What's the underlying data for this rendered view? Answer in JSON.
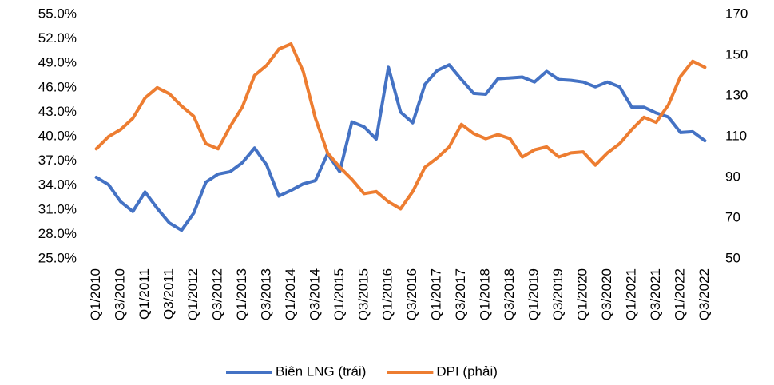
{
  "chart_data": {
    "type": "line",
    "categories": [
      "Q1/2010",
      null,
      "Q3/2010",
      null,
      "Q1/2011",
      null,
      "Q3/2011",
      null,
      "Q1/2012",
      null,
      "Q3/2012",
      null,
      "Q1/2013",
      null,
      "Q3/2013",
      null,
      "Q1/2014",
      null,
      "Q3/2014",
      null,
      "Q1/2015",
      null,
      "Q3/2015",
      null,
      "Q1/2016",
      null,
      "Q3/2016",
      null,
      "Q1/2017",
      null,
      "Q3/2017",
      null,
      "Q1/2018",
      null,
      "Q3/2018",
      null,
      "Q1/2019",
      null,
      "Q3/2019",
      null,
      "Q1/2020",
      null,
      "Q3/2020",
      null,
      "Q1/2021",
      null,
      "Q3/2021",
      null,
      "Q1/2022",
      null,
      "Q3/2022"
    ],
    "series": [
      {
        "name": "Biên LNG (trái)",
        "color": "#4472c4",
        "axis": "y",
        "values": [
          35.0,
          34.1,
          32.0,
          30.8,
          33.2,
          31.2,
          29.4,
          28.5,
          30.6,
          34.4,
          35.4,
          35.7,
          36.8,
          38.6,
          36.5,
          32.7,
          33.4,
          34.2,
          34.6,
          37.9,
          35.7,
          41.8,
          41.2,
          39.7,
          48.5,
          43.0,
          41.7,
          46.4,
          48.1,
          48.8,
          47.0,
          45.3,
          45.2,
          47.1,
          47.2,
          47.3,
          46.7,
          48.0,
          47.0,
          46.9,
          46.7,
          46.1,
          46.7,
          46.1,
          43.6,
          43.6,
          42.9,
          42.4,
          40.5,
          40.6,
          39.5
        ]
      },
      {
        "name": "DPI (phải)",
        "color": "#ed7d31",
        "axis": "y2",
        "values": [
          104,
          110,
          113.5,
          119,
          129,
          134,
          131,
          125,
          120,
          106.5,
          104,
          115,
          124.5,
          140,
          145,
          153,
          155.5,
          142,
          119,
          102,
          95,
          89,
          82,
          83,
          78,
          74.5,
          83,
          95,
          99.5,
          105,
          116,
          111.5,
          109,
          111,
          109,
          100,
          103.5,
          105,
          100,
          102,
          102.5,
          96,
          102,
          106.5,
          113.5,
          119.5,
          117,
          125.5,
          139.5,
          147,
          144
        ]
      }
    ],
    "ylim": [
      25,
      55
    ],
    "yticks": [
      {
        "value": 25,
        "label": "25.0%"
      },
      {
        "value": 28,
        "label": "28.0%"
      },
      {
        "value": 31,
        "label": "31.0%"
      },
      {
        "value": 34,
        "label": "34.0%"
      },
      {
        "value": 37,
        "label": "37.0%"
      },
      {
        "value": 40,
        "label": "40.0%"
      },
      {
        "value": 43,
        "label": "43.0%"
      },
      {
        "value": 46,
        "label": "46.0%"
      },
      {
        "value": 49,
        "label": "49.0%"
      },
      {
        "value": 52,
        "label": "52.0%"
      },
      {
        "value": 55,
        "label": "55.0%"
      }
    ],
    "y2lim": [
      50,
      170
    ],
    "y2ticks": [
      50,
      70,
      90,
      110,
      130,
      150,
      170
    ],
    "grid": false,
    "legend": "bottom"
  }
}
